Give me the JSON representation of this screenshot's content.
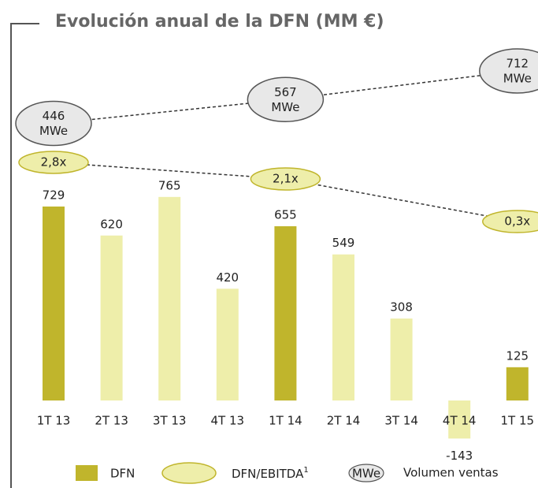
{
  "chart_data": {
    "type": "bar",
    "title": "Evolución anual de la DFN (MM €)",
    "categories": [
      "1T 13",
      "2T 13",
      "3T 13",
      "4T 13",
      "1T 14",
      "2T 14",
      "3T 14",
      "4T 14",
      "1T 15"
    ],
    "series": [
      {
        "name": "DFN",
        "values": [
          729,
          620,
          765,
          420,
          655,
          549,
          308,
          -143,
          125
        ],
        "colors": [
          "#c0b52c",
          "#eeeeaa",
          "#eeeeaa",
          "#eeeeaa",
          "#c0b52c",
          "#eeeeaa",
          "#eeeeaa",
          "#eeeeaa",
          "#c0b52c"
        ]
      }
    ],
    "ratio": {
      "name": "DFN/EBITDA",
      "footnote": "1",
      "color": "#eeeeaa",
      "values": [
        2.8,
        null,
        null,
        null,
        2.1,
        null,
        null,
        null,
        0.3
      ],
      "value_labels": [
        "2,8x",
        null,
        null,
        null,
        "2,1x",
        null,
        null,
        null,
        "0,3x"
      ]
    },
    "volume": {
      "name": "Volumen ventas",
      "unit": "MWe",
      "color": "#e8e8e8",
      "values": [
        446,
        null,
        null,
        null,
        567,
        null,
        null,
        null,
        712
      ]
    }
  }
}
